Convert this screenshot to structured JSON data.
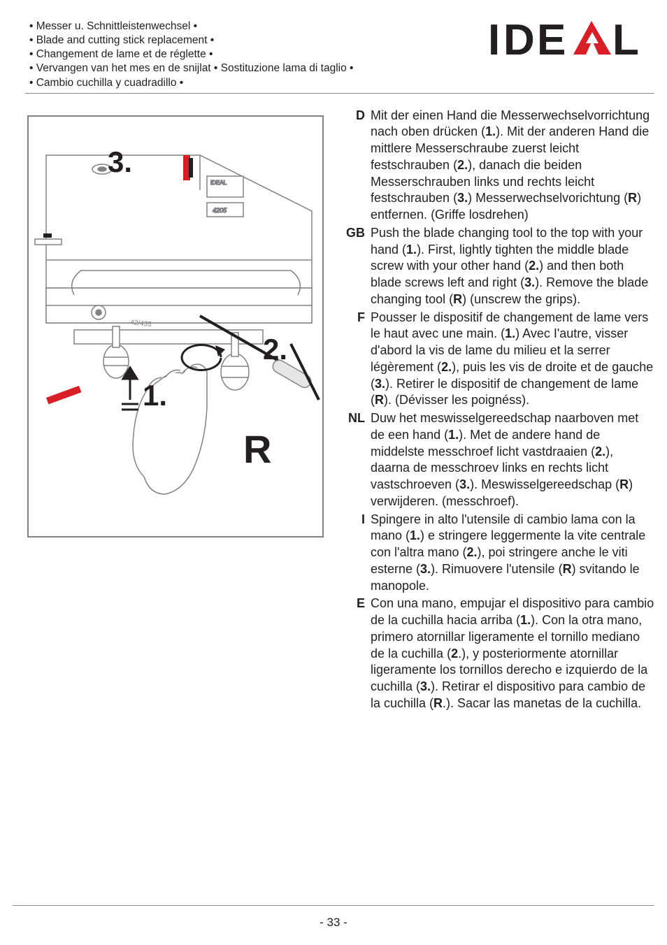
{
  "header_bullets": [
    "• Messer u. Schnittleistenwechsel •",
    "• Blade and cutting stick replacement •",
    "• Changement de lame et de réglette •",
    "• Vervangen van het mes en de snijlat • Sostituzione lama di taglio •",
    "• Cambio cuchilla y cuadradillo •"
  ],
  "logo": {
    "text": "IDEAL",
    "bg": "#ffffff",
    "fg": "#231f20",
    "accent": "#d81e26"
  },
  "diagram": {
    "labels": {
      "step1": "1.",
      "step2": "2.",
      "step3": "3.",
      "tool": "R"
    },
    "colors": {
      "outline": "#808285",
      "red": "#d81e26",
      "black": "#231f20",
      "white": "#ffffff",
      "grey_fill": "#e6e6e6"
    }
  },
  "instructions": [
    {
      "code": "D",
      "html": "Mit der einen Hand die Messerwechselvorrichtung nach oben drücken (<b>1.</b>). Mit der anderen Hand  die mittlere Messerschraube zuerst leicht festschrauben (<b>2.</b>), danach die beiden Messerschrauben links und rechts leicht festschrauben (<b>3.</b>) Messerwechselvorichtung (<b>R</b>) entfernen. (Griffe losdrehen)"
    },
    {
      "code": "GB",
      "html": "Push the blade changing tool to the top with your hand (<b>1.</b>). First, lightly tighten the middle blade screw with your other hand (<b>2.</b>) and then both blade screws left and right (<b>3.</b>). Remove the blade changing tool (<b>R</b>) (unscrew the grips)."
    },
    {
      "code": "F",
      "html": "Pousser le dispositif de changement de lame vers le haut avec une main. (<b>1.</b>) Avec I'autre, visser d'abord la vis de lame du milieu et la serrer légèrement (<b>2.</b>), puis les vis de droite et de gauche (<b>3.</b>). Retirer le dispositif de changement de lame (<b>R</b>). (Dévisser les poignéss)."
    },
    {
      "code": "NL",
      "html": "Duw het meswisselgereedschap naarboven met de een hand (<b>1.</b>). Met de andere hand de middelste messchroef licht vastdraaien (<b>2.</b>), daarna de messchroev links en rechts licht vastschroeven (<b>3.</b>). Meswisselgereedschap (<b>R</b>) verwijderen. (messchroef)."
    },
    {
      "code": "I",
      "html": "Spingere in alto l'utensile di cambio lama con la mano (<b>1.</b>) e stringere leggermente la vite centrale con l'altra mano (<b>2.</b>), poi stringere anche le viti esterne (<b>3.</b>). Rimuovere l'utensile (<b>R</b>) svitando le manopole."
    },
    {
      "code": "E",
      "html": "Con una mano, empujar el dispositivo para cambio de la cuchilla hacia arriba (<b>1.</b>). Con la otra mano, primero atornillar ligeramente el tornillo mediano de la cuchilla (<b>2</b>.), y posteriormente atornillar ligeramente los tornillos derecho e izquierdo de la cuchilla (<b>3.</b>). Retirar el dispositivo para cambio de la cuchilla (<b>R</b>.). Sacar las manetas de la cuchilla."
    }
  ],
  "page_number": "- 33 -"
}
